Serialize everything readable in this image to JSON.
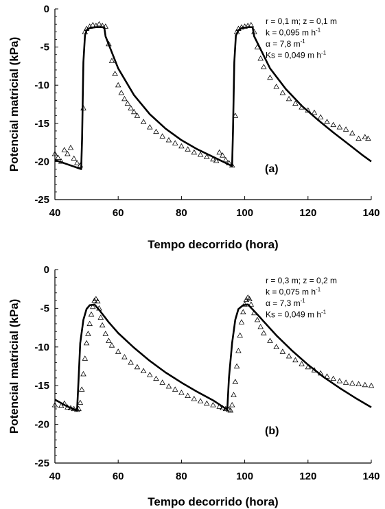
{
  "chart_data": [
    {
      "type": "line",
      "panel": "(a)",
      "xlabel": "Tempo decorrido (hora)",
      "ylabel": "Potencial matricial (kPa)",
      "xlim": [
        40,
        140
      ],
      "ylim": [
        -25,
        0
      ],
      "xticks": [
        "40",
        "60",
        "80",
        "100",
        "120",
        "140"
      ],
      "yticks": [
        "0",
        "-5",
        "-10",
        "-15",
        "-20",
        "-25"
      ],
      "annotations": [
        "r = 0,1 m;  z = 0,1 m",
        "k = 0,095 m h",
        "α = 7,8 m",
        "Ks = 0,049 m h"
      ],
      "annotation_sup": [
        "",
        "-1",
        "-1",
        "-1"
      ],
      "series": [
        {
          "style": "line",
          "x": [
            40,
            48.3,
            48.6,
            49,
            49.5,
            50,
            51,
            53,
            55.6,
            56,
            60,
            65,
            70,
            75,
            80,
            85,
            90,
            94,
            96,
            96.3,
            96.7,
            97.2,
            98,
            99,
            101,
            102.5,
            103,
            108,
            113,
            118,
            123,
            128,
            133,
            137,
            140
          ],
          "y": [
            -19.8,
            -21,
            -17,
            -7,
            -3.5,
            -2.8,
            -2.5,
            -2.4,
            -2.4,
            -3.6,
            -7.8,
            -11.3,
            -13.8,
            -15.7,
            -17.2,
            -18.4,
            -19.4,
            -20.2,
            -20.6,
            -16,
            -7,
            -3.5,
            -2.8,
            -2.5,
            -2.4,
            -2.4,
            -3.6,
            -7.8,
            -10.5,
            -12.7,
            -14.5,
            -16.2,
            -17.8,
            -19.1,
            -20
          ]
        },
        {
          "style": "triangle",
          "x": [
            40,
            41,
            42,
            43,
            44,
            45,
            46,
            47,
            48,
            49,
            49.5,
            50,
            51,
            52,
            53,
            54,
            55,
            56,
            57,
            58,
            59,
            60,
            61,
            62,
            63,
            64,
            65,
            66,
            68,
            70,
            72,
            74,
            76,
            78,
            80,
            82,
            84,
            86,
            88,
            90,
            91,
            92,
            93,
            94,
            95,
            96,
            97,
            97.5,
            98,
            99,
            100,
            101,
            102,
            103,
            104,
            105,
            106,
            108,
            110,
            112,
            114,
            116,
            118,
            120,
            122,
            124,
            126,
            128,
            130,
            132,
            134,
            136,
            138,
            139
          ],
          "y": [
            -19,
            -19.5,
            -20,
            -18.5,
            -19,
            -18.2,
            -19.6,
            -20.2,
            -20.5,
            -13,
            -3,
            -2.6,
            -2.3,
            -2.1,
            -2.2,
            -2,
            -2.2,
            -2.3,
            -4.6,
            -6.8,
            -8.5,
            -10,
            -11,
            -11.8,
            -12.4,
            -13,
            -13.5,
            -14,
            -14.8,
            -15.5,
            -16.1,
            -16.7,
            -17.2,
            -17.6,
            -18,
            -18.4,
            -18.8,
            -19.1,
            -19.4,
            -19.7,
            -19.9,
            -18.8,
            -19.2,
            -19.8,
            -20.2,
            -20.5,
            -14,
            -3,
            -2.6,
            -2.4,
            -2.3,
            -2.2,
            -2.1,
            -3,
            -5,
            -6.5,
            -7.6,
            -9,
            -10.2,
            -11,
            -11.8,
            -12.4,
            -12.9,
            -13.3,
            -13.6,
            -14.2,
            -14.8,
            -15.2,
            -15.5,
            -15.8,
            -16.3,
            -17,
            -16.8,
            -17
          ]
        }
      ]
    },
    {
      "type": "line",
      "panel": "(b)",
      "xlabel": "Tempo decorrido (hora)",
      "ylabel": "Potencial matricial (kPa)",
      "xlim": [
        40,
        140
      ],
      "ylim": [
        -25,
        0
      ],
      "xticks": [
        "40",
        "60",
        "80",
        "100",
        "120",
        "140"
      ],
      "yticks": [
        "0",
        "-5",
        "-10",
        "-15",
        "-20",
        "-25"
      ],
      "annotations": [
        "r = 0,3 m;  z = 0,2 m",
        "k = 0,075 m h",
        "α = 7,3 m",
        "Ks = 0,049 m h"
      ],
      "annotation_sup": [
        "",
        "-1",
        "-1",
        "-1"
      ],
      "series": [
        {
          "style": "line",
          "x": [
            40,
            44,
            47,
            47.5,
            48,
            49,
            50,
            51,
            52.5,
            54,
            57,
            60,
            65,
            70,
            75,
            80,
            85,
            90,
            93,
            94.5,
            95,
            96,
            97,
            98,
            99.5,
            101,
            104,
            110,
            115,
            120,
            125,
            130,
            135,
            140
          ],
          "y": [
            -16.8,
            -17.7,
            -18.2,
            -14,
            -9.5,
            -6.5,
            -5.1,
            -4.6,
            -4.5,
            -5.2,
            -6.8,
            -8.2,
            -10.1,
            -11.8,
            -13.3,
            -14.6,
            -15.8,
            -16.9,
            -17.7,
            -18.1,
            -14,
            -9.5,
            -6.5,
            -5.1,
            -4.6,
            -4.5,
            -5.8,
            -8.5,
            -10.5,
            -12.3,
            -13.9,
            -15.3,
            -16.6,
            -17.8
          ]
        },
        {
          "style": "triangle",
          "x": [
            40,
            42,
            43,
            44,
            45,
            46,
            47,
            47.5,
            48,
            48.5,
            49,
            49.5,
            50,
            50.5,
            51,
            51.5,
            52,
            52.5,
            53,
            53.5,
            54,
            54.5,
            55,
            56,
            57,
            58,
            60,
            62,
            64,
            66,
            68,
            70,
            72,
            74,
            76,
            78,
            80,
            82,
            84,
            86,
            88,
            90,
            92,
            93,
            94,
            95,
            95.5,
            96,
            96.5,
            97,
            97.5,
            98,
            98.5,
            99,
            99.5,
            100,
            100.5,
            101,
            101.5,
            102,
            103,
            104,
            105,
            106,
            108,
            110,
            112,
            114,
            116,
            118,
            120,
            122,
            124,
            126,
            128,
            130,
            132,
            134,
            136,
            138,
            140
          ],
          "y": [
            -17.5,
            -17.6,
            -17.3,
            -17.8,
            -17.9,
            -18,
            -18.1,
            -18,
            -17.2,
            -15.5,
            -13.5,
            -11.5,
            -9.5,
            -8.3,
            -7,
            -5.8,
            -4.8,
            -4,
            -3.8,
            -4.1,
            -5,
            -6.2,
            -7.2,
            -8.3,
            -9.2,
            -9.8,
            -10.6,
            -11.3,
            -12,
            -12.6,
            -13.1,
            -13.6,
            -14.1,
            -14.6,
            -15.1,
            -15.5,
            -15.9,
            -16.3,
            -16.7,
            -17,
            -17.3,
            -17.5,
            -17.7,
            -17.9,
            -18,
            -18.1,
            -18.2,
            -17.5,
            -16.2,
            -14.5,
            -12.5,
            -10.5,
            -8.5,
            -6.8,
            -5.5,
            -4.5,
            -3.9,
            -3.6,
            -3.8,
            -4.5,
            -5.6,
            -6.5,
            -7.4,
            -8.2,
            -9.2,
            -10,
            -10.6,
            -11.2,
            -11.7,
            -12.2,
            -12.6,
            -13,
            -13.4,
            -13.8,
            -14.1,
            -14.4,
            -14.6,
            -14.7,
            -14.8,
            -14.9,
            -15
          ]
        }
      ]
    }
  ]
}
